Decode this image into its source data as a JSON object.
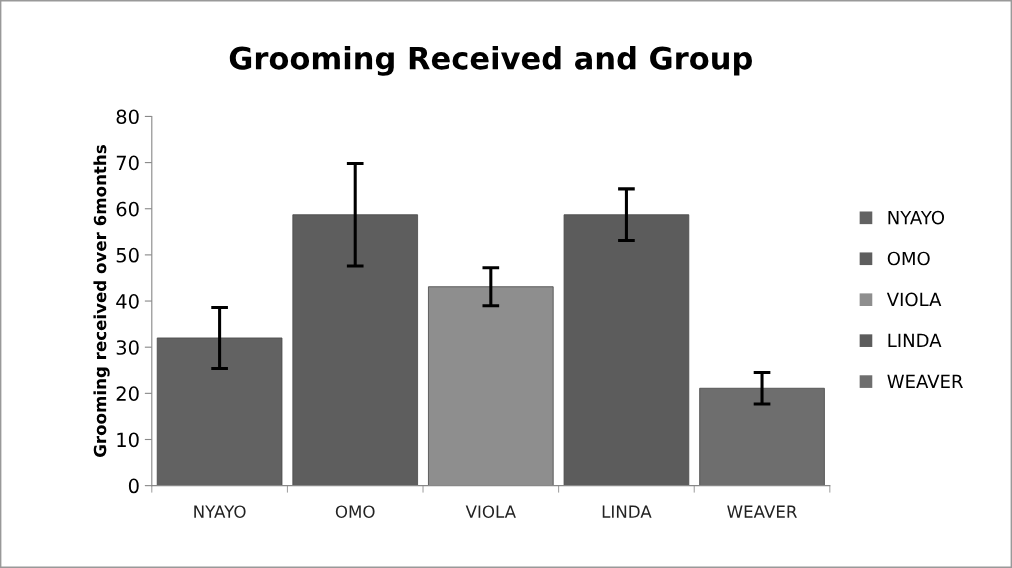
{
  "chart_data": {
    "type": "bar",
    "title": "Grooming Received and Group",
    "ylabel": "Grooming received over 6months",
    "categories": [
      "NYAYO",
      "OMO",
      "VIOLA",
      "LINDA",
      "WEAVER"
    ],
    "series": [
      {
        "name": "NYAYO",
        "color": "#626262",
        "values": [
          32,
          null,
          null,
          null,
          null
        ],
        "errors": [
          6.6,
          null,
          null,
          null,
          null
        ]
      },
      {
        "name": "OMO",
        "color": "#5e5e5e",
        "values": [
          null,
          58.7,
          null,
          null,
          null
        ],
        "errors": [
          null,
          11.1,
          null,
          null,
          null
        ]
      },
      {
        "name": "VIOLA",
        "color": "#8e8e8e",
        "values": [
          null,
          null,
          43.1,
          null,
          null
        ],
        "errors": [
          null,
          null,
          4.1,
          null,
          null
        ]
      },
      {
        "name": "LINDA",
        "color": "#5c5c5c",
        "values": [
          null,
          null,
          null,
          58.7,
          null
        ],
        "errors": [
          null,
          null,
          null,
          5.6,
          null
        ]
      },
      {
        "name": "WEAVER",
        "color": "#6e6e6e",
        "values": [
          null,
          null,
          null,
          null,
          21.1
        ],
        "errors": [
          null,
          null,
          null,
          null,
          3.4
        ]
      }
    ],
    "ylim": [
      0,
      80
    ],
    "yticks": [
      0,
      10,
      20,
      30,
      40,
      50,
      60,
      70,
      80
    ],
    "legend": "right"
  }
}
